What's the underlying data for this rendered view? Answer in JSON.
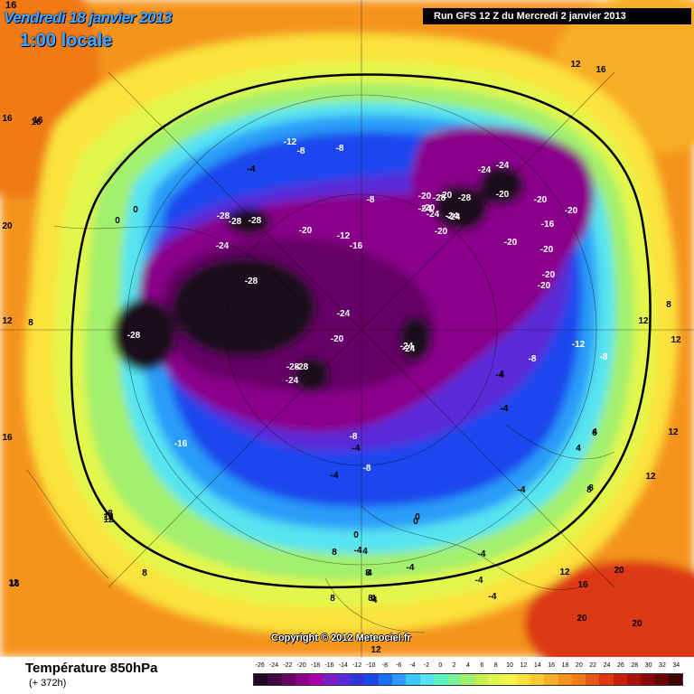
{
  "header": {
    "date": "Vendredi 18 janvier 2013",
    "time": "1:00 locale",
    "run": "Run GFS 12 Z du Mercredi 2 janvier 2013",
    "corner_value": "16"
  },
  "copyright": "Copyright © 2012 Meteociel.fr",
  "footer": {
    "variable": "Température 850hPa",
    "forecast_hour": "(+ 372h)"
  },
  "legend": {
    "labels": [
      "-26",
      "-24",
      "-22",
      "-20",
      "-18",
      "-16",
      "-14",
      "-12",
      "-10",
      "-8",
      "-6",
      "-4",
      "-2",
      "0",
      "2",
      "4",
      "6",
      "8",
      "10",
      "12",
      "14",
      "16",
      "18",
      "20",
      "22",
      "24",
      "26",
      "28",
      "30",
      "32",
      "34"
    ],
    "colors": [
      "#1e0a1e",
      "#420042",
      "#660066",
      "#8a008a",
      "#aa00aa",
      "#7d1fc8",
      "#5a2ad8",
      "#3333dd",
      "#1f47ee",
      "#1e6ef5",
      "#2a9cf8",
      "#3cc8fa",
      "#57e4f0",
      "#5ef2c8",
      "#7af295",
      "#a2f06d",
      "#c6f258",
      "#e2f64b",
      "#f5f545",
      "#fbe23c",
      "#fbc830",
      "#f8ae25",
      "#f4941e",
      "#ef7a19",
      "#e95815",
      "#dd3812",
      "#c8200f",
      "#aa100c",
      "#880808",
      "#640404",
      "#420000"
    ]
  },
  "map_labels": [
    {
      "text": "-8"
    },
    {
      "text": "-12"
    },
    {
      "text": "-8"
    },
    {
      "text": "-4"
    },
    {
      "text": "-8"
    },
    {
      "text": "0"
    },
    {
      "text": "0"
    },
    {
      "text": "-28"
    },
    {
      "text": "-28"
    },
    {
      "text": "-28"
    },
    {
      "text": "-20"
    },
    {
      "text": "-12"
    },
    {
      "text": "-16"
    },
    {
      "text": "-24"
    },
    {
      "text": "-28"
    },
    {
      "text": "-28"
    },
    {
      "text": "-24"
    },
    {
      "text": "-20"
    },
    {
      "text": "-28"
    },
    {
      "text": "-24"
    },
    {
      "text": "-28"
    },
    {
      "text": "-24"
    },
    {
      "text": "-20"
    },
    {
      "text": "-24"
    },
    {
      "text": "-16"
    },
    {
      "text": "-8"
    },
    {
      "text": "-4"
    },
    {
      "text": "-8"
    },
    {
      "text": "-4"
    },
    {
      "text": "0"
    },
    {
      "text": "0"
    },
    {
      "text": "-4"
    },
    {
      "text": "4"
    },
    {
      "text": "8"
    },
    {
      "text": "-4"
    },
    {
      "text": "12"
    },
    {
      "text": "16"
    },
    {
      "text": "-20"
    },
    {
      "text": "-20"
    },
    {
      "text": "-28"
    },
    {
      "text": "-20"
    },
    {
      "text": "-24"
    },
    {
      "text": "-24"
    },
    {
      "text": "-24"
    },
    {
      "text": "-24"
    },
    {
      "text": "-20"
    },
    {
      "text": "-20"
    },
    {
      "text": "-20"
    },
    {
      "text": "-16"
    },
    {
      "text": "-20"
    },
    {
      "text": "-20"
    },
    {
      "text": "-20"
    },
    {
      "text": "-20"
    },
    {
      "text": "-12"
    },
    {
      "text": "-8"
    },
    {
      "text": "-8"
    },
    {
      "text": "-4"
    },
    {
      "text": "-4"
    },
    {
      "text": "-4"
    },
    {
      "text": "-4"
    },
    {
      "text": "4"
    },
    {
      "text": "4"
    },
    {
      "text": "8"
    },
    {
      "text": "12"
    },
    {
      "text": "12"
    },
    {
      "text": "16"
    },
    {
      "text": "20"
    },
    {
      "text": "20"
    },
    {
      "text": "20"
    },
    {
      "text": "16"
    },
    {
      "text": "12"
    },
    {
      "text": "16"
    },
    {
      "text": "12"
    },
    {
      "text": "8"
    },
    {
      "text": "8"
    },
    {
      "text": "8"
    },
    {
      "text": "12"
    },
    {
      "text": "12"
    },
    {
      "text": "16"
    },
    {
      "text": "16"
    },
    {
      "text": "16"
    },
    {
      "text": "12"
    },
    {
      "text": "8"
    },
    {
      "text": "20"
    },
    {
      "text": "16"
    },
    {
      "text": "12"
    },
    {
      "text": "8"
    },
    {
      "text": "4"
    },
    {
      "text": "8"
    },
    {
      "text": "8"
    },
    {
      "text": "4"
    },
    {
      "text": "-4"
    },
    {
      "text": "0"
    },
    {
      "text": "4"
    },
    {
      "text": "-4"
    },
    {
      "text": "-4"
    },
    {
      "text": "8"
    },
    {
      "text": "8"
    },
    {
      "text": "12"
    },
    {
      "text": "12"
    },
    {
      "text": "-24"
    },
    {
      "text": "-28"
    },
    {
      "text": "-24"
    }
  ]
}
